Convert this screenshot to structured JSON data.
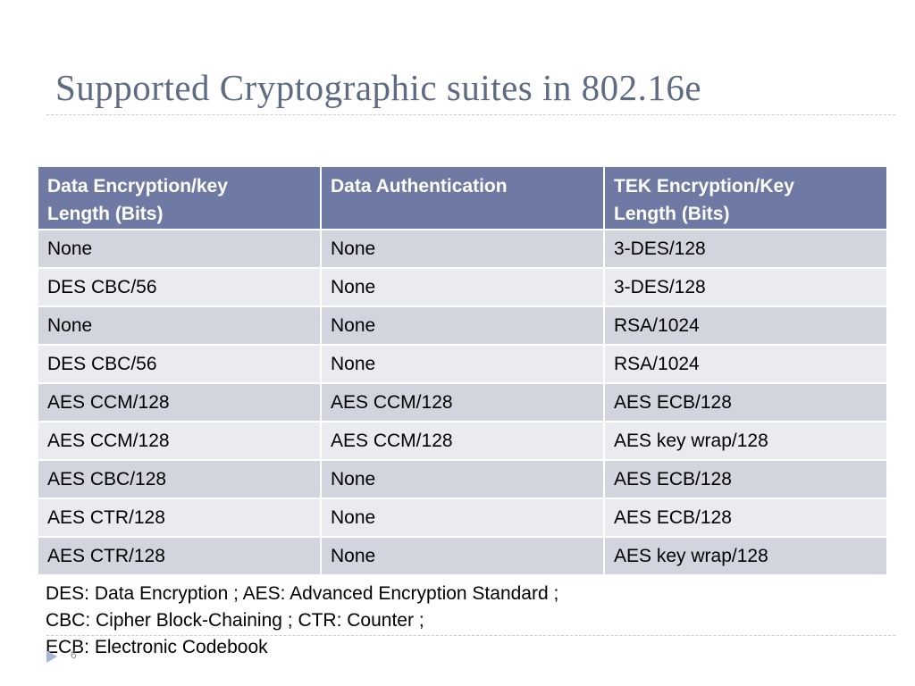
{
  "slide": {
    "title": "Supported Cryptographic suites in 802.16e",
    "number": "6"
  },
  "table": {
    "headers": [
      [
        "Data Encryption/key",
        "Length (Bits)"
      ],
      [
        "Data Authentication"
      ],
      [
        "TEK Encryption/Key",
        "Length (Bits)"
      ]
    ],
    "rows": [
      [
        "None",
        "None",
        "3-DES/128"
      ],
      [
        "DES CBC/56",
        "None",
        "3-DES/128"
      ],
      [
        "None",
        "None",
        "RSA/1024"
      ],
      [
        "DES CBC/56",
        "None",
        "RSA/1024"
      ],
      [
        "AES CCM/128",
        "AES CCM/128",
        "AES ECB/128"
      ],
      [
        "AES CCM/128",
        "AES CCM/128",
        "AES key wrap/128"
      ],
      [
        "AES CBC/128",
        "None",
        "AES ECB/128"
      ],
      [
        "AES CTR/128",
        "None",
        "AES ECB/128"
      ],
      [
        "AES CTR/128",
        "None",
        "AES key wrap/128"
      ]
    ]
  },
  "footnotes": [
    "DES: Data Encryption ; AES: Advanced Encryption Standard ;",
    "CBC: Cipher Block-Chaining ; CTR: Counter ;",
    "ECB: Electronic Codebook"
  ],
  "colors": {
    "title": "#5e6b82",
    "header_bg": "#6e7aa3",
    "row_odd": "#d2d5de",
    "row_even": "#eaebef",
    "bullet": "#a9b6d8"
  }
}
